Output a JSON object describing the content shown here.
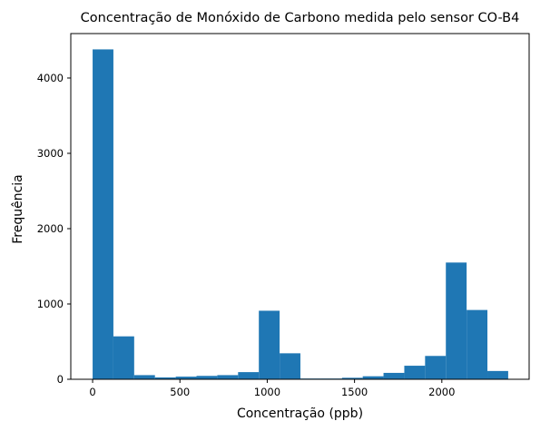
{
  "chart_data": {
    "type": "bar",
    "title": "Concentração de Monóxido de Carbono medida pelo sensor CO-B4",
    "xlabel": "Concentração (ppb)",
    "ylabel": "Frequência",
    "bar_color": "#1f77b4",
    "xlim": [
      -125,
      2500
    ],
    "ylim": [
      0,
      4590
    ],
    "x_ticks": [
      0,
      500,
      1000,
      1500,
      2000
    ],
    "y_ticks": [
      0,
      1000,
      2000,
      3000,
      4000
    ],
    "bins": [
      {
        "x0": 0,
        "x1": 119,
        "value": 4380
      },
      {
        "x0": 119,
        "x1": 238,
        "value": 570
      },
      {
        "x0": 238,
        "x1": 357,
        "value": 55
      },
      {
        "x0": 357,
        "x1": 476,
        "value": 25
      },
      {
        "x0": 476,
        "x1": 595,
        "value": 35
      },
      {
        "x0": 595,
        "x1": 714,
        "value": 45
      },
      {
        "x0": 714,
        "x1": 833,
        "value": 55
      },
      {
        "x0": 833,
        "x1": 952,
        "value": 95
      },
      {
        "x0": 952,
        "x1": 1071,
        "value": 910
      },
      {
        "x0": 1071,
        "x1": 1190,
        "value": 345
      },
      {
        "x0": 1190,
        "x1": 1309,
        "value": 10
      },
      {
        "x0": 1309,
        "x1": 1428,
        "value": 10
      },
      {
        "x0": 1428,
        "x1": 1547,
        "value": 20
      },
      {
        "x0": 1547,
        "x1": 1666,
        "value": 40
      },
      {
        "x0": 1666,
        "x1": 1785,
        "value": 85
      },
      {
        "x0": 1785,
        "x1": 1904,
        "value": 180
      },
      {
        "x0": 1904,
        "x1": 2023,
        "value": 310
      },
      {
        "x0": 2023,
        "x1": 2142,
        "value": 1550
      },
      {
        "x0": 2142,
        "x1": 2261,
        "value": 920
      },
      {
        "x0": 2261,
        "x1": 2380,
        "value": 110
      }
    ]
  }
}
